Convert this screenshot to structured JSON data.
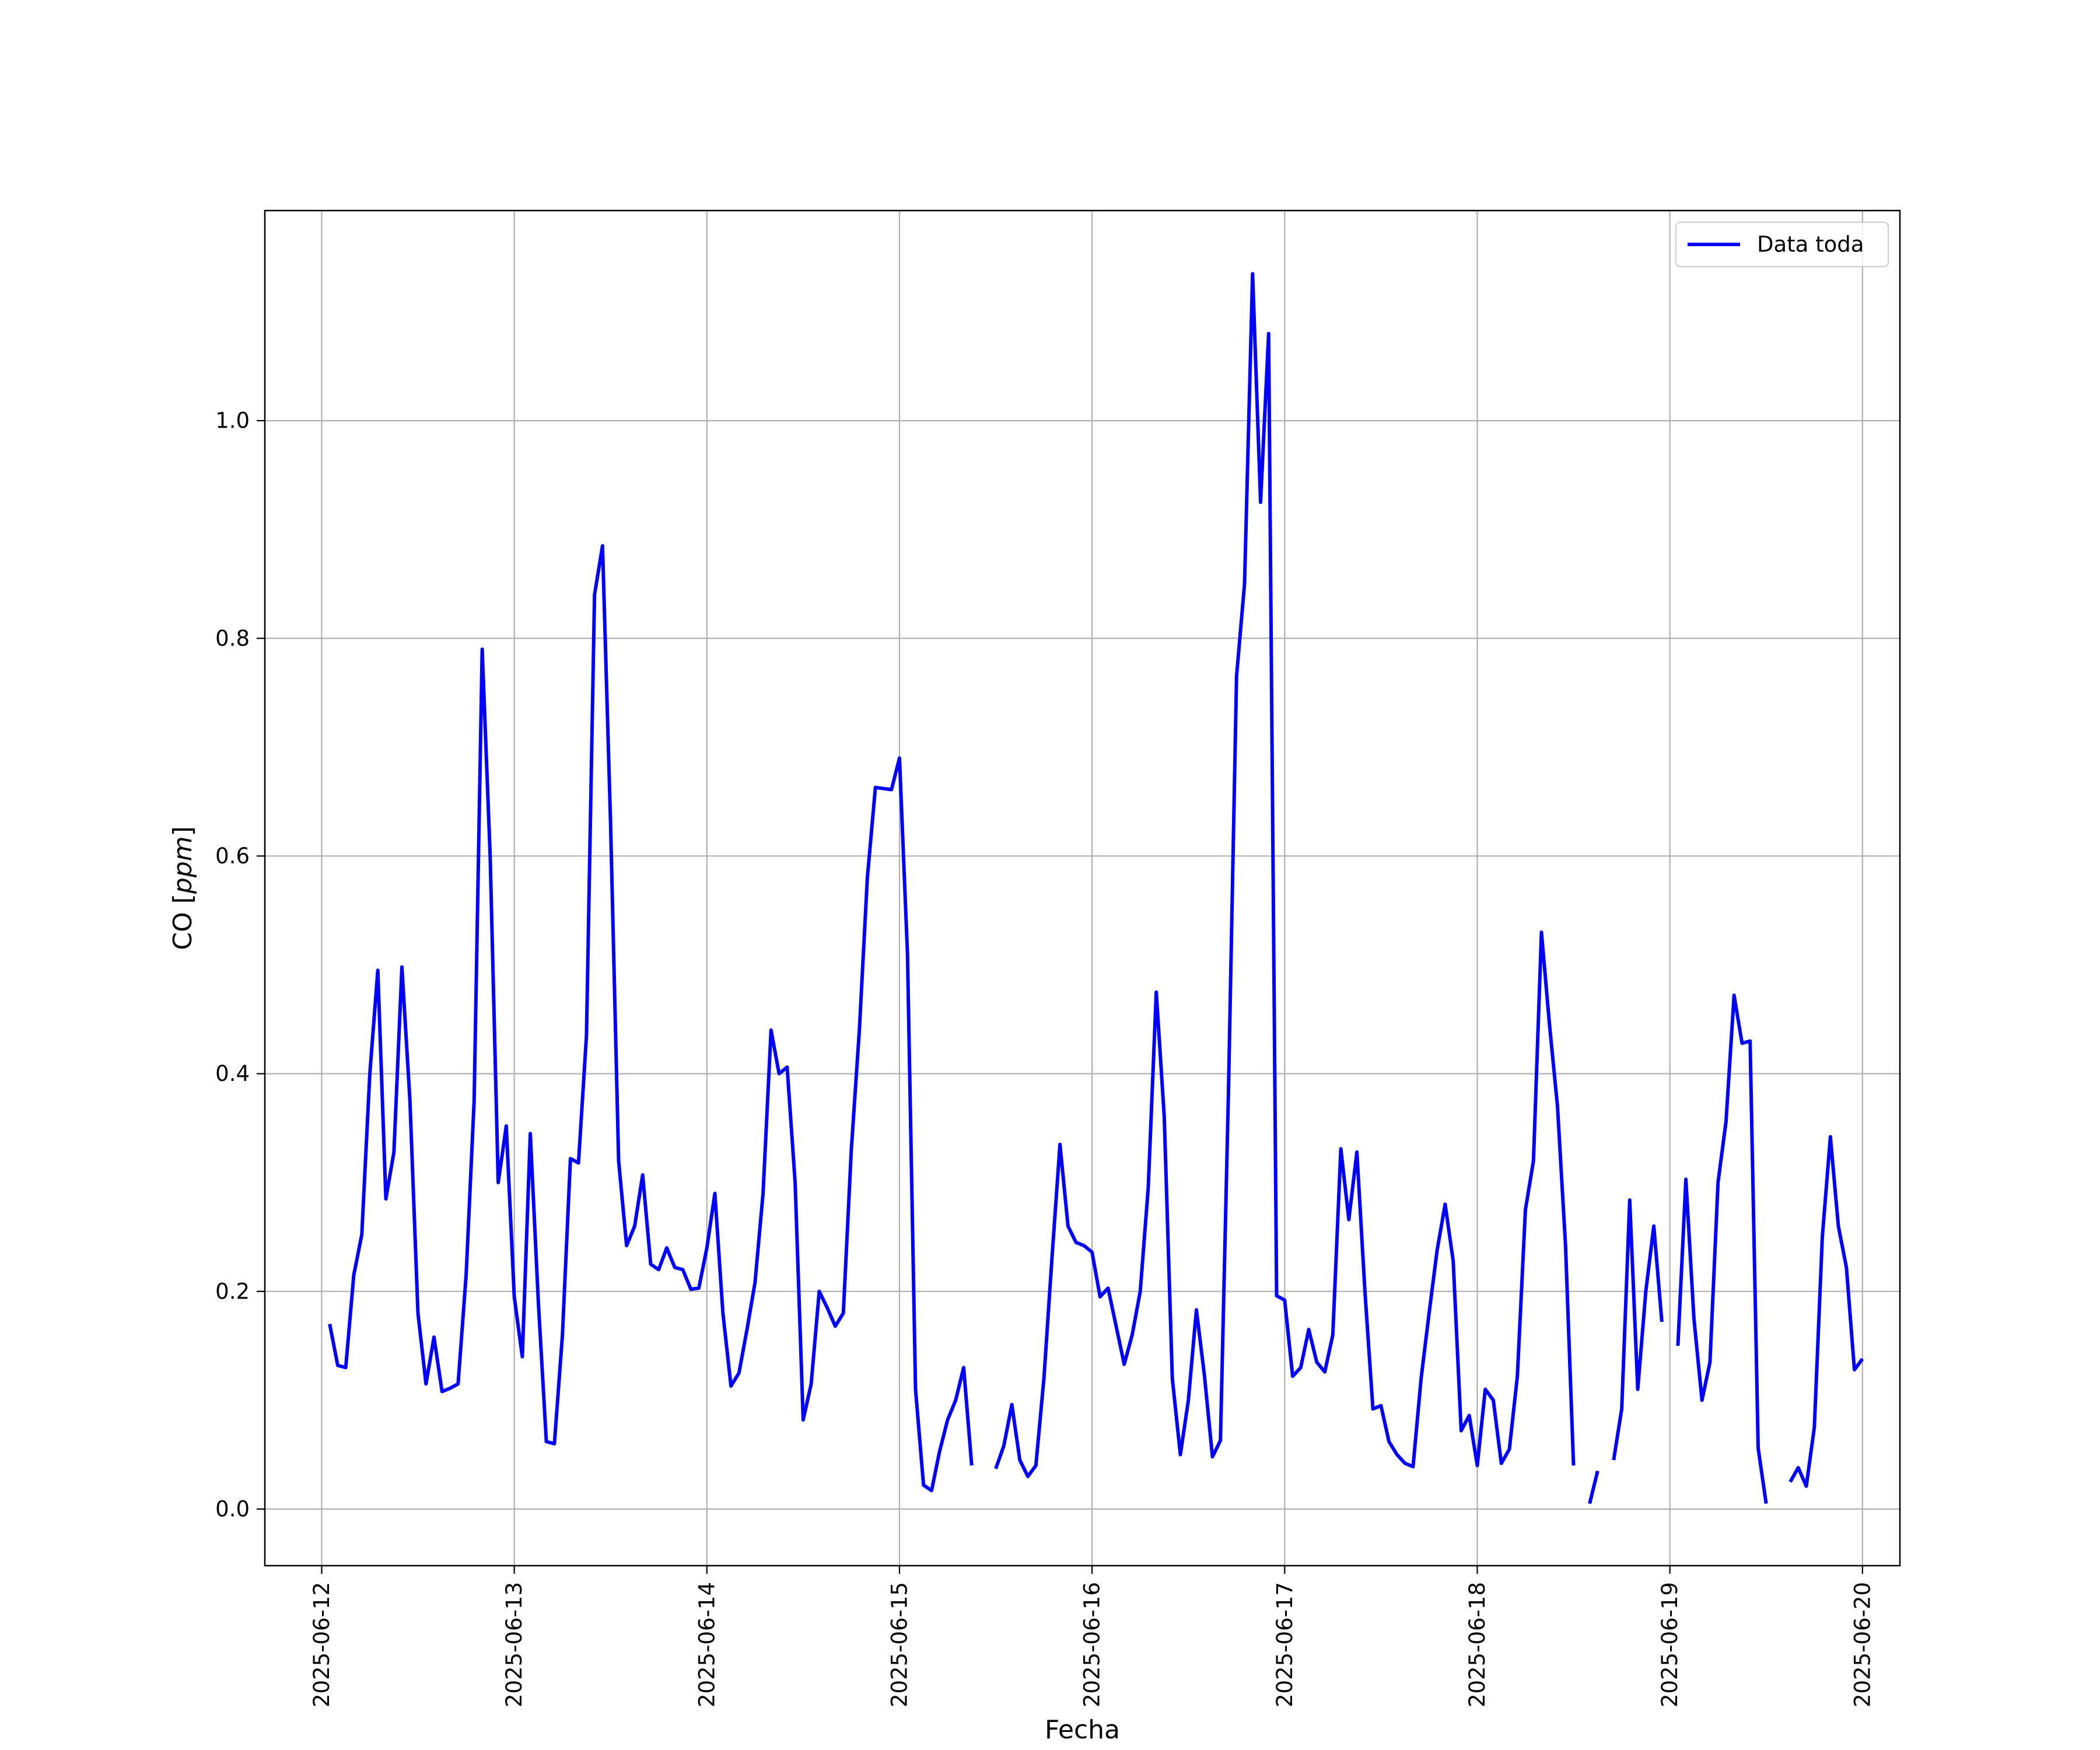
{
  "chart_data": {
    "type": "line",
    "title": "",
    "xlabel": "Fecha",
    "ylabel": "CO [ppm]",
    "ylabel_parts": {
      "prefix": "CO [",
      "unit": "ppm",
      "suffix": "]"
    },
    "xlim": [
      "2025-06-11T16:55",
      "2025-06-20T04:40"
    ],
    "ylim": [
      -0.052,
      1.193
    ],
    "x_ticks": [
      "2025-06-12",
      "2025-06-13",
      "2025-06-14",
      "2025-06-15",
      "2025-06-16",
      "2025-06-17",
      "2025-06-18",
      "2025-06-19",
      "2025-06-20"
    ],
    "y_ticks": [
      "0.0",
      "0.2",
      "0.4",
      "0.6",
      "0.8",
      "1.0"
    ],
    "y_tick_values": [
      0.0,
      0.2,
      0.4,
      0.6,
      0.8,
      1.0
    ],
    "grid": true,
    "legend_position": "top-right",
    "colors": {
      "series": "#0000ff",
      "grid": "#b0b0b0",
      "axes": "#000000"
    },
    "series": [
      {
        "name": "Data toda",
        "x": [
          "2025-06-12T01:00",
          "2025-06-12T02:00",
          "2025-06-12T03:00",
          "2025-06-12T04:00",
          "2025-06-12T05:00",
          "2025-06-12T06:00",
          "2025-06-12T07:00",
          "2025-06-12T08:00",
          "2025-06-12T09:00",
          "2025-06-12T10:00",
          "2025-06-12T11:00",
          "2025-06-12T12:00",
          "2025-06-12T13:00",
          "2025-06-12T14:00",
          "2025-06-12T15:00",
          "2025-06-12T16:00",
          "2025-06-12T17:00",
          "2025-06-12T18:00",
          "2025-06-12T19:00",
          "2025-06-12T20:00",
          "2025-06-12T21:00",
          "2025-06-12T22:00",
          "2025-06-12T23:00",
          "2025-06-13T00:00",
          "2025-06-13T01:00",
          "2025-06-13T02:00",
          "2025-06-13T03:00",
          "2025-06-13T04:00",
          "2025-06-13T05:00",
          "2025-06-13T06:00",
          "2025-06-13T07:00",
          "2025-06-13T08:00",
          "2025-06-13T09:00",
          "2025-06-13T10:00",
          "2025-06-13T11:00",
          "2025-06-13T12:00",
          "2025-06-13T13:00",
          "2025-06-13T14:00",
          "2025-06-13T15:00",
          "2025-06-13T16:00",
          "2025-06-13T17:00",
          "2025-06-13T18:00",
          "2025-06-13T19:00",
          "2025-06-13T20:00",
          "2025-06-13T21:00",
          "2025-06-13T22:00",
          "2025-06-13T23:00",
          "2025-06-14T00:00",
          "2025-06-14T01:00",
          "2025-06-14T02:00",
          "2025-06-14T03:00",
          "2025-06-14T04:00",
          "2025-06-14T05:00",
          "2025-06-14T06:00",
          "2025-06-14T07:00",
          "2025-06-14T08:00",
          "2025-06-14T09:00",
          "2025-06-14T10:00",
          "2025-06-14T11:00",
          "2025-06-14T12:00",
          "2025-06-14T13:00",
          "2025-06-14T14:00",
          "2025-06-14T15:00",
          "2025-06-14T16:00",
          "2025-06-14T17:00",
          "2025-06-14T18:00",
          "2025-06-14T19:00",
          "2025-06-14T20:00",
          "2025-06-14T21:00",
          "2025-06-14T22:00",
          "2025-06-14T23:00",
          "2025-06-15T00:00",
          "2025-06-15T01:00",
          "2025-06-15T02:00",
          "2025-06-15T03:00",
          "2025-06-15T04:00",
          "2025-06-15T05:00",
          "2025-06-15T06:00",
          "2025-06-15T07:00",
          "2025-06-15T08:00",
          "2025-06-15T09:00",
          "2025-06-15T10:00",
          "2025-06-15T11:00",
          "2025-06-15T12:00",
          "2025-06-15T13:00",
          "2025-06-15T14:00",
          "2025-06-15T15:00",
          "2025-06-15T16:00",
          "2025-06-15T17:00",
          "2025-06-15T18:00",
          "2025-06-15T19:00",
          "2025-06-15T20:00",
          "2025-06-15T21:00",
          "2025-06-15T22:00",
          "2025-06-15T23:00",
          "2025-06-16T00:00",
          "2025-06-16T01:00",
          "2025-06-16T02:00",
          "2025-06-16T03:00",
          "2025-06-16T04:00",
          "2025-06-16T05:00",
          "2025-06-16T06:00",
          "2025-06-16T07:00",
          "2025-06-16T08:00",
          "2025-06-16T09:00",
          "2025-06-16T10:00",
          "2025-06-16T11:00",
          "2025-06-16T12:00",
          "2025-06-16T13:00",
          "2025-06-16T14:00",
          "2025-06-16T15:00",
          "2025-06-16T16:00",
          "2025-06-16T17:00",
          "2025-06-16T18:00",
          "2025-06-16T19:00",
          "2025-06-16T20:00",
          "2025-06-16T21:00",
          "2025-06-16T22:00",
          "2025-06-16T23:00",
          "2025-06-17T00:00",
          "2025-06-17T01:00",
          "2025-06-17T02:00",
          "2025-06-17T03:00",
          "2025-06-17T04:00",
          "2025-06-17T05:00",
          "2025-06-17T06:00",
          "2025-06-17T07:00",
          "2025-06-17T08:00",
          "2025-06-17T09:00",
          "2025-06-17T10:00",
          "2025-06-17T11:00",
          "2025-06-17T12:00",
          "2025-06-17T13:00",
          "2025-06-17T14:00",
          "2025-06-17T15:00",
          "2025-06-17T16:00",
          "2025-06-17T17:00",
          "2025-06-17T18:00",
          "2025-06-17T19:00",
          "2025-06-17T20:00",
          "2025-06-17T21:00",
          "2025-06-17T22:00",
          "2025-06-17T23:00",
          "2025-06-18T00:00",
          "2025-06-18T01:00",
          "2025-06-18T02:00",
          "2025-06-18T03:00",
          "2025-06-18T04:00",
          "2025-06-18T05:00",
          "2025-06-18T06:00",
          "2025-06-18T07:00",
          "2025-06-18T08:00",
          "2025-06-18T09:00",
          "2025-06-18T10:00",
          "2025-06-18T11:00",
          "2025-06-18T12:00",
          "2025-06-18T13:00",
          "2025-06-18T14:00",
          "2025-06-18T15:00",
          "2025-06-18T16:00",
          "2025-06-18T17:00",
          "2025-06-18T18:00",
          "2025-06-18T19:00",
          "2025-06-18T20:00",
          "2025-06-18T21:00",
          "2025-06-18T22:00",
          "2025-06-18T23:00",
          "2025-06-19T00:00",
          "2025-06-19T01:00",
          "2025-06-19T02:00",
          "2025-06-19T03:00",
          "2025-06-19T04:00",
          "2025-06-19T05:00",
          "2025-06-19T06:00",
          "2025-06-19T07:00",
          "2025-06-19T08:00",
          "2025-06-19T09:00",
          "2025-06-19T10:00",
          "2025-06-19T11:00",
          "2025-06-19T12:00",
          "2025-06-19T13:00",
          "2025-06-19T14:00",
          "2025-06-19T15:00",
          "2025-06-19T16:00",
          "2025-06-19T17:00",
          "2025-06-19T18:00",
          "2025-06-19T19:00",
          "2025-06-19T20:00",
          "2025-06-19T21:00",
          "2025-06-19T22:00",
          "2025-06-19T23:00",
          "2025-06-20T00:00"
        ],
        "y": [
          0.17,
          0.132,
          0.13,
          0.215,
          0.252,
          0.4,
          0.495,
          0.285,
          0.328,
          0.498,
          0.375,
          0.18,
          0.115,
          0.158,
          0.108,
          0.111,
          0.115,
          0.215,
          0.375,
          0.79,
          0.6,
          0.3,
          0.352,
          0.195,
          0.14,
          0.345,
          0.19,
          0.062,
          0.06,
          0.16,
          0.322,
          0.318,
          0.435,
          0.84,
          0.885,
          0.63,
          0.32,
          0.242,
          0.26,
          0.307,
          0.225,
          0.22,
          0.24,
          0.222,
          0.22,
          0.202,
          0.203,
          0.24,
          0.29,
          0.18,
          0.113,
          0.125,
          0.165,
          0.208,
          0.29,
          0.44,
          0.4,
          0.406,
          0.3,
          0.082,
          0.115,
          0.2,
          0.185,
          0.168,
          0.18,
          0.33,
          0.44,
          0.58,
          0.663,
          0.662,
          0.661,
          0.69,
          0.51,
          0.11,
          0.022,
          0.017,
          0.053,
          0.082,
          0.1,
          0.13,
          0.04,
          null,
          null,
          0.037,
          0.058,
          0.096,
          0.045,
          0.03,
          0.04,
          0.12,
          0.23,
          0.335,
          0.26,
          0.245,
          0.242,
          0.236,
          0.195,
          0.203,
          0.168,
          0.133,
          0.16,
          0.2,
          0.295,
          0.475,
          0.36,
          0.12,
          0.05,
          0.1,
          0.183,
          0.123,
          0.048,
          0.063,
          0.385,
          0.765,
          0.85,
          1.135,
          0.925,
          1.08,
          0.196,
          0.192,
          0.122,
          0.13,
          0.165,
          0.135,
          0.126,
          0.16,
          0.331,
          0.266,
          0.328,
          0.2,
          0.092,
          0.095,
          0.062,
          0.05,
          0.042,
          0.039,
          0.12,
          0.18,
          0.238,
          0.28,
          0.228,
          0.072,
          0.086,
          0.04,
          0.11,
          0.1,
          0.042,
          0.055,
          0.122,
          0.275,
          0.32,
          0.53,
          0.445,
          0.37,
          0.242,
          0.04,
          null,
          0.005,
          0.035,
          null,
          0.045,
          0.092,
          0.284,
          0.11,
          0.2,
          0.26,
          0.172,
          null,
          0.15,
          0.303,
          0.175,
          0.1,
          0.135,
          0.3,
          0.356,
          0.472,
          0.428,
          0.43,
          0.056,
          0.005,
          null,
          null,
          0.025,
          0.038,
          0.021,
          0.075,
          0.25,
          0.342,
          0.26,
          0.222,
          0.128,
          0.138
        ]
      }
    ]
  }
}
